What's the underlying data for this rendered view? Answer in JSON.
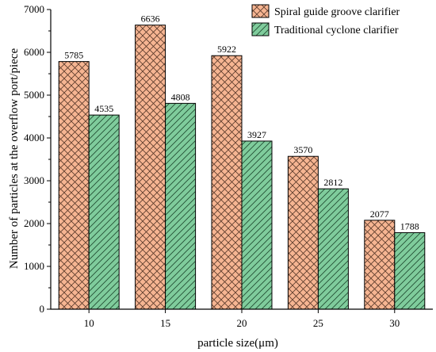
{
  "chart_data": {
    "type": "bar",
    "categories": [
      "10",
      "15",
      "20",
      "25",
      "30"
    ],
    "series": [
      {
        "name": "Spiral guide groove clarifier",
        "values": [
          5785,
          6636,
          5922,
          3570,
          2077
        ],
        "color": "#f6b592",
        "pattern": "crosshatch"
      },
      {
        "name": "Traditional cyclone clarifier",
        "values": [
          4535,
          4808,
          3927,
          2812,
          1788
        ],
        "color": "#7fcc9c",
        "pattern": "diagonal"
      }
    ],
    "title": "",
    "xlabel": "particle size(μm)",
    "ylabel": "Number of particles at the overflow port/piece",
    "ylim": [
      0,
      7000
    ],
    "yticks": [
      0,
      1000,
      2000,
      3000,
      4000,
      5000,
      6000,
      7000
    ],
    "legend_position": "top-right",
    "grid": false
  }
}
